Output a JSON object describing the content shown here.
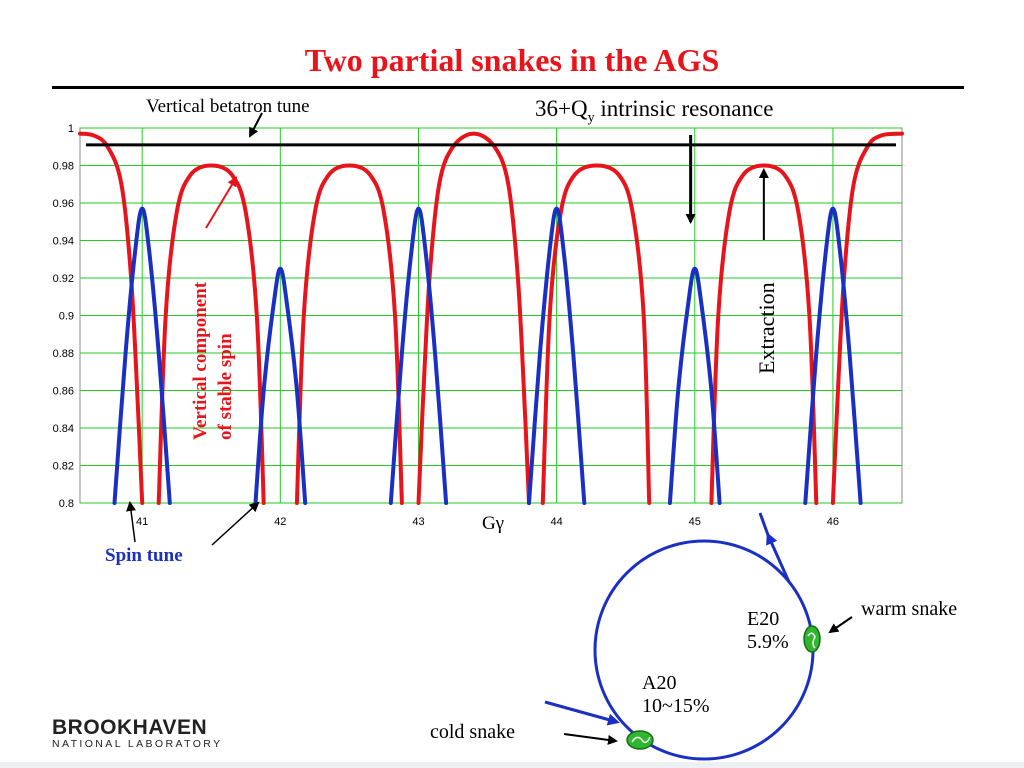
{
  "title": "Two partial snakes in the AGS",
  "colors": {
    "title": "#e8141b",
    "stable_spin": "#e8141b",
    "spin_tune": "#1a2fc4",
    "grid": "#22cc22",
    "snake_fill": "#2eb82e"
  },
  "annotations": {
    "betatron_tune": "Vertical betatron tune",
    "resonance_prefix": "36+Q",
    "resonance_sub": "y",
    "resonance_suffix": " intrinsic resonance",
    "extraction": "Extraction",
    "stable_spin_line1": "Vertical component",
    "stable_spin_line2": "of  stable spin",
    "spin_tune": "Spin tune"
  },
  "ring": {
    "warm_snake_label": "warm snake",
    "cold_snake_label": "cold snake",
    "e20_name": "E20",
    "e20_value": "5.9%",
    "a20_name": "A20",
    "a20_value": "10~15%"
  },
  "logo": {
    "name": "BROOKHAVEN",
    "sub": "NATIONAL LABORATORY"
  },
  "chart_data": {
    "type": "line",
    "xlabel": "Gγ",
    "xlim": [
      40.55,
      46.5
    ],
    "ylim": [
      0.8,
      1.0
    ],
    "x_ticks": [
      41,
      42,
      43,
      44,
      45,
      46
    ],
    "y_ticks": [
      0.8,
      0.82,
      0.84,
      0.86,
      0.88,
      0.9,
      0.92,
      0.94,
      0.96,
      0.98,
      1
    ],
    "y_tick_labels": [
      "0.8",
      "0.82",
      "0.84",
      "0.86",
      "0.88",
      "0.9",
      "0.92",
      "0.94",
      "0.96",
      "0.98",
      "1"
    ],
    "grid": true,
    "betatron_tune_level": 0.991,
    "resonance_marker_x": 44.97,
    "extraction_marker_x": 45.5,
    "series": [
      {
        "name": "Vertical component of stable spin",
        "color": "#e8141b",
        "segments": [
          {
            "x": [
              40.55,
              40.65,
              40.75,
              40.85,
              40.92,
              40.97,
              41.0
            ],
            "y": [
              0.997,
              0.996,
              0.99,
              0.97,
              0.92,
              0.85,
              0.8
            ]
          },
          {
            "x": [
              41.12,
              41.17,
              41.25,
              41.35,
              41.5,
              41.65,
              41.75,
              41.83,
              41.88
            ],
            "y": [
              0.8,
              0.9,
              0.955,
              0.975,
              0.98,
              0.975,
              0.955,
              0.9,
              0.8
            ]
          },
          {
            "x": [
              42.12,
              42.17,
              42.25,
              42.35,
              42.5,
              42.65,
              42.75,
              42.83,
              42.88
            ],
            "y": [
              0.8,
              0.9,
              0.955,
              0.975,
              0.98,
              0.975,
              0.955,
              0.9,
              0.8
            ]
          },
          {
            "x": [
              43.0,
              43.03,
              43.08,
              43.15,
              43.25,
              43.4,
              43.55,
              43.65,
              43.72,
              43.77,
              43.8
            ],
            "y": [
              0.8,
              0.85,
              0.92,
              0.97,
              0.99,
              0.997,
              0.99,
              0.97,
              0.92,
              0.85,
              0.8
            ]
          },
          {
            "x": [
              43.9,
              43.95,
              44.03,
              44.13,
              44.29,
              44.45,
              44.55,
              44.63,
              44.67
            ],
            "y": [
              0.8,
              0.9,
              0.955,
              0.975,
              0.98,
              0.975,
              0.955,
              0.9,
              0.8
            ]
          },
          {
            "x": [
              45.12,
              45.17,
              45.25,
              45.35,
              45.5,
              45.65,
              45.75,
              45.83,
              45.88
            ],
            "y": [
              0.8,
              0.9,
              0.955,
              0.975,
              0.98,
              0.975,
              0.955,
              0.9,
              0.8
            ]
          },
          {
            "x": [
              46.0,
              46.03,
              46.08,
              46.15,
              46.25,
              46.35,
              46.5
            ],
            "y": [
              0.8,
              0.85,
              0.92,
              0.97,
              0.99,
              0.996,
              0.997
            ]
          }
        ]
      },
      {
        "name": "Spin tune",
        "color": "#1a2fc4",
        "segments": [
          {
            "x": [
              40.8,
              40.88,
              40.95,
              41.0,
              41.05,
              41.12,
              41.2
            ],
            "y": [
              0.8,
              0.88,
              0.935,
              0.957,
              0.935,
              0.88,
              0.8
            ]
          },
          {
            "x": [
              41.82,
              41.88,
              41.95,
              42.0,
              42.05,
              42.12,
              42.18
            ],
            "y": [
              0.8,
              0.86,
              0.905,
              0.925,
              0.905,
              0.86,
              0.8
            ]
          },
          {
            "x": [
              42.8,
              42.88,
              42.95,
              43.0,
              43.05,
              43.12,
              43.2
            ],
            "y": [
              0.8,
              0.88,
              0.935,
              0.957,
              0.935,
              0.88,
              0.8
            ]
          },
          {
            "x": [
              43.8,
              43.88,
              43.95,
              44.0,
              44.05,
              44.12,
              44.2
            ],
            "y": [
              0.8,
              0.88,
              0.935,
              0.957,
              0.935,
              0.88,
              0.8
            ]
          },
          {
            "x": [
              44.82,
              44.88,
              44.95,
              45.0,
              45.05,
              45.12,
              45.18
            ],
            "y": [
              0.8,
              0.86,
              0.905,
              0.925,
              0.905,
              0.86,
              0.8
            ]
          },
          {
            "x": [
              45.8,
              45.88,
              45.95,
              46.0,
              46.05,
              46.12,
              46.2
            ],
            "y": [
              0.8,
              0.88,
              0.935,
              0.957,
              0.935,
              0.88,
              0.8
            ]
          }
        ]
      }
    ]
  }
}
